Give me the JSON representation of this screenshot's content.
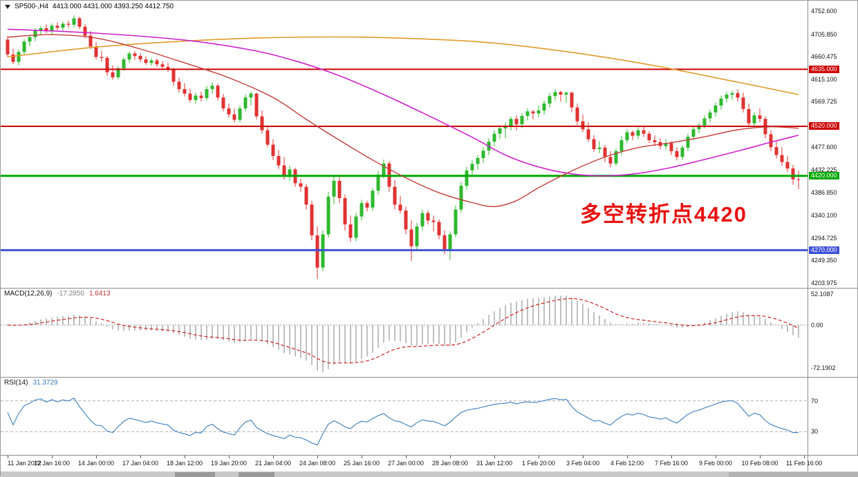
{
  "title": {
    "symbol_period": "SP500-,H4",
    "ohlc": "4413.000 4431.000 4393.250 4412.750"
  },
  "annotation": {
    "text": "多空转折点4420",
    "color": "#e81010"
  },
  "colors": {
    "candle_up": "#2eb82e",
    "candle_down": "#e03232",
    "macd_hist": "#b9b9b9",
    "macd_signal": "#cc2222",
    "rsi_line": "#4a86c0",
    "level_dash": "#b0b0b0",
    "zero_dash": "#999999"
  },
  "price_axis": {
    "ticks": [
      {
        "label": "4752.600",
        "price": 4752.6
      },
      {
        "label": "4705.850",
        "price": 4705.85
      },
      {
        "label": "4660.475",
        "price": 4660.475
      },
      {
        "label": "4615.100",
        "price": 4615.1
      },
      {
        "label": "4569.725",
        "price": 4569.725
      },
      {
        "label": "4477.600",
        "price": 4477.6
      },
      {
        "label": "4432.225",
        "price": 4432.225
      },
      {
        "label": "4386.850",
        "price": 4386.85
      },
      {
        "label": "4340.100",
        "price": 4340.1
      },
      {
        "label": "4294.725",
        "price": 4294.725
      },
      {
        "label": "4249.350",
        "price": 4249.35
      },
      {
        "label": "4203.975",
        "price": 4203.975
      }
    ],
    "badges": [
      {
        "label": "4635.000",
        "price": 4635,
        "color": "#cc0000"
      },
      {
        "label": "4520.000",
        "price": 4520,
        "color": "#cc0000"
      },
      {
        "label": "4420.000",
        "price": 4420,
        "color": "#00a800"
      },
      {
        "label": "4270.000",
        "price": 4270,
        "color": "#3f51d6"
      }
    ]
  },
  "macd": {
    "label": "MACD(12,26,9)",
    "value_main": "-17.2850",
    "value_signal": "1.6413",
    "axis": {
      "max": 62,
      "min": -88,
      "clamp_max": 54,
      "clamp_min": -80,
      "ticks": [
        {
          "label": "52.1087",
          "value": 52.1087
        },
        {
          "label": "0.00",
          "value": 0
        },
        {
          "label": "-72.1902",
          "value": -72.1902
        }
      ]
    }
  },
  "rsi": {
    "label": "RSI(14)",
    "value": "31.3729",
    "axis": {
      "max": 100,
      "min": 0,
      "ticks": [
        {
          "label": "70",
          "value": 70
        },
        {
          "label": "30",
          "value": 30
        }
      ]
    },
    "levels": [
      70,
      30
    ]
  },
  "time_axis": {
    "labels": [
      {
        "label": "11 Jan 2022",
        "bar": 0
      },
      {
        "label": "12 Jan 16:00",
        "bar": 8
      },
      {
        "label": "14 Jan 00:00",
        "bar": 16
      },
      {
        "label": "17 Jan 04:00",
        "bar": 24
      },
      {
        "label": "18 Jan 12:00",
        "bar": 32
      },
      {
        "label": "19 Jan 20:00",
        "bar": 40
      },
      {
        "label": "21 Jan 04:00",
        "bar": 48
      },
      {
        "label": "24 Jan 08:00",
        "bar": 56
      },
      {
        "label": "25 Jan 16:00",
        "bar": 64
      },
      {
        "label": "27 Jan 00:00",
        "bar": 72
      },
      {
        "label": "28 Jan 08:00",
        "bar": 80
      },
      {
        "label": "31 Jan 12:00",
        "bar": 88
      },
      {
        "label": "1 Feb 20:00",
        "bar": 96
      },
      {
        "label": "3 Feb 04:00",
        "bar": 104
      },
      {
        "label": "4 Feb 12:00",
        "bar": 112
      },
      {
        "label": "7 Feb 16:00",
        "bar": 120
      },
      {
        "label": "9 Feb 00:00",
        "bar": 128
      },
      {
        "label": "10 Feb 08:00",
        "bar": 136
      },
      {
        "label": "11 Feb 16:00",
        "bar": 144
      }
    ]
  },
  "chart_data": {
    "type": "candlestick",
    "symbol": "SP500-",
    "timeframe": "H4",
    "current_bar": {
      "open": 4413.0,
      "high": 4431.0,
      "low": 4393.25,
      "close": 4412.75
    },
    "indicators": [
      {
        "name": "MACD",
        "params": "12,26,9",
        "main": -17.285,
        "signal": 1.6413
      },
      {
        "name": "RSI",
        "params": "14",
        "value": 31.3729
      }
    ],
    "price_scale": {
      "top": 4773.5,
      "bottom": 4194.0
    },
    "hlines": [
      {
        "price": 4635,
        "color": "#cc0000",
        "width": 2,
        "label": "4635.000"
      },
      {
        "price": 4520,
        "color": "#cc0000",
        "width": 2,
        "label": "4520.000"
      },
      {
        "price": 4420,
        "color": "#00a800",
        "width": 3,
        "label": "4420.000"
      },
      {
        "price": 4270,
        "color": "#3f51d6",
        "width": 3,
        "label": "4270.000"
      }
    ],
    "ma_lines": [
      {
        "name": "ma-long-orange",
        "color": "#e09a28",
        "width": 1.6,
        "points": [
          [
            0,
            4660
          ],
          [
            16,
            4680
          ],
          [
            32,
            4692
          ],
          [
            48,
            4699
          ],
          [
            64,
            4700
          ],
          [
            80,
            4694
          ],
          [
            88,
            4688
          ],
          [
            96,
            4678
          ],
          [
            104,
            4666
          ],
          [
            112,
            4652
          ],
          [
            120,
            4636
          ],
          [
            128,
            4618
          ],
          [
            136,
            4600
          ],
          [
            143,
            4584
          ]
        ]
      },
      {
        "name": "ma-slow-magenta",
        "color": "#cc22cc",
        "width": 1.6,
        "points": [
          [
            0,
            4716
          ],
          [
            16,
            4708
          ],
          [
            32,
            4694
          ],
          [
            44,
            4674
          ],
          [
            52,
            4652
          ],
          [
            60,
            4622
          ],
          [
            68,
            4584
          ],
          [
            76,
            4542
          ],
          [
            84,
            4498
          ],
          [
            90,
            4462
          ],
          [
            96,
            4438
          ],
          [
            102,
            4424
          ],
          [
            108,
            4420
          ],
          [
            114,
            4425
          ],
          [
            120,
            4437
          ],
          [
            126,
            4453
          ],
          [
            132,
            4470
          ],
          [
            138,
            4488
          ],
          [
            143,
            4502
          ]
        ]
      },
      {
        "name": "ma-mid-red",
        "color": "#c43c3c",
        "width": 1.4,
        "points": [
          [
            0,
            4700
          ],
          [
            8,
            4705
          ],
          [
            16,
            4698
          ],
          [
            24,
            4676
          ],
          [
            32,
            4648
          ],
          [
            40,
            4618
          ],
          [
            48,
            4578
          ],
          [
            54,
            4534
          ],
          [
            60,
            4492
          ],
          [
            66,
            4452
          ],
          [
            72,
            4416
          ],
          [
            78,
            4386
          ],
          [
            84,
            4366
          ],
          [
            88,
            4358
          ],
          [
            92,
            4370
          ],
          [
            96,
            4396
          ],
          [
            102,
            4430
          ],
          [
            108,
            4458
          ],
          [
            114,
            4477
          ],
          [
            120,
            4487
          ],
          [
            126,
            4499
          ],
          [
            132,
            4513
          ],
          [
            138,
            4519
          ],
          [
            143,
            4516
          ]
        ]
      }
    ],
    "candles": [
      [
        4695,
        4702,
        4660,
        4665
      ],
      [
        4665,
        4677,
        4645,
        4650
      ],
      [
        4650,
        4675,
        4643,
        4670
      ],
      [
        4670,
        4696,
        4665,
        4691
      ],
      [
        4691,
        4705,
        4682,
        4700
      ],
      [
        4700,
        4718,
        4692,
        4713
      ],
      [
        4713,
        4722,
        4704,
        4718
      ],
      [
        4718,
        4726,
        4708,
        4712
      ],
      [
        4712,
        4728,
        4706,
        4723
      ],
      [
        4723,
        4730,
        4714,
        4719
      ],
      [
        4719,
        4731,
        4712,
        4727
      ],
      [
        4727,
        4733,
        4719,
        4725
      ],
      [
        4725,
        4744,
        4720,
        4738
      ],
      [
        4738,
        4741,
        4716,
        4721
      ],
      [
        4721,
        4726,
        4698,
        4703
      ],
      [
        4703,
        4712,
        4676,
        4681
      ],
      [
        4681,
        4690,
        4655,
        4660
      ],
      [
        4660,
        4672,
        4650,
        4658
      ],
      [
        4658,
        4662,
        4622,
        4629
      ],
      [
        4629,
        4643,
        4614,
        4619
      ],
      [
        4619,
        4641,
        4615,
        4637
      ],
      [
        4637,
        4660,
        4632,
        4655
      ],
      [
        4655,
        4671,
        4648,
        4667
      ],
      [
        4667,
        4672,
        4654,
        4662
      ],
      [
        4662,
        4668,
        4650,
        4655
      ],
      [
        4655,
        4661,
        4644,
        4648
      ],
      [
        4648,
        4658,
        4642,
        4653
      ],
      [
        4653,
        4657,
        4640,
        4645
      ],
      [
        4645,
        4652,
        4634,
        4640
      ],
      [
        4640,
        4648,
        4630,
        4636
      ],
      [
        4636,
        4638,
        4602,
        4610
      ],
      [
        4610,
        4618,
        4588,
        4595
      ],
      [
        4595,
        4607,
        4580,
        4586
      ],
      [
        4586,
        4596,
        4568,
        4573
      ],
      [
        4573,
        4588,
        4566,
        4582
      ],
      [
        4582,
        4590,
        4570,
        4577
      ],
      [
        4577,
        4601,
        4572,
        4595
      ],
      [
        4595,
        4609,
        4586,
        4602
      ],
      [
        4602,
        4606,
        4572,
        4578
      ],
      [
        4578,
        4585,
        4550,
        4556
      ],
      [
        4556,
        4566,
        4538,
        4544
      ],
      [
        4544,
        4556,
        4528,
        4533
      ],
      [
        4533,
        4562,
        4528,
        4556
      ],
      [
        4556,
        4584,
        4550,
        4578
      ],
      [
        4578,
        4590,
        4562,
        4586
      ],
      [
        4586,
        4588,
        4534,
        4540
      ],
      [
        4540,
        4552,
        4505,
        4512
      ],
      [
        4512,
        4520,
        4478,
        4483
      ],
      [
        4483,
        4494,
        4452,
        4460
      ],
      [
        4460,
        4472,
        4434,
        4441
      ],
      [
        4441,
        4458,
        4412,
        4418
      ],
      [
        4418,
        4440,
        4410,
        4433
      ],
      [
        4433,
        4436,
        4398,
        4405
      ],
      [
        4405,
        4414,
        4388,
        4398
      ],
      [
        4398,
        4404,
        4352,
        4362
      ],
      [
        4362,
        4370,
        4290,
        4300
      ],
      [
        4300,
        4318,
        4212,
        4235
      ],
      [
        4235,
        4310,
        4228,
        4302
      ],
      [
        4302,
        4388,
        4295,
        4378
      ],
      [
        4378,
        4420,
        4362,
        4410
      ],
      [
        4410,
        4417,
        4365,
        4375
      ],
      [
        4375,
        4382,
        4310,
        4322
      ],
      [
        4322,
        4340,
        4287,
        4295
      ],
      [
        4295,
        4345,
        4288,
        4338
      ],
      [
        4338,
        4372,
        4330,
        4365
      ],
      [
        4365,
        4370,
        4348,
        4356
      ],
      [
        4356,
        4395,
        4350,
        4390
      ],
      [
        4390,
        4430,
        4382,
        4422
      ],
      [
        4422,
        4453,
        4415,
        4445
      ],
      [
        4445,
        4450,
        4388,
        4398
      ],
      [
        4398,
        4412,
        4352,
        4362
      ],
      [
        4362,
        4380,
        4344,
        4350
      ],
      [
        4350,
        4358,
        4302,
        4312
      ],
      [
        4312,
        4330,
        4248,
        4278
      ],
      [
        4278,
        4325,
        4270,
        4318
      ],
      [
        4318,
        4352,
        4310,
        4345
      ],
      [
        4345,
        4350,
        4322,
        4330
      ],
      [
        4330,
        4340,
        4308,
        4327
      ],
      [
        4327,
        4332,
        4292,
        4300
      ],
      [
        4300,
        4310,
        4262,
        4272
      ],
      [
        4272,
        4308,
        4250,
        4302
      ],
      [
        4302,
        4360,
        4296,
        4352
      ],
      [
        4352,
        4408,
        4346,
        4400
      ],
      [
        4400,
        4438,
        4392,
        4431
      ],
      [
        4431,
        4452,
        4420,
        4444
      ],
      [
        4444,
        4462,
        4432,
        4456
      ],
      [
        4456,
        4478,
        4446,
        4471
      ],
      [
        4471,
        4496,
        4462,
        4489
      ],
      [
        4489,
        4512,
        4480,
        4505
      ],
      [
        4505,
        4522,
        4494,
        4516
      ],
      [
        4516,
        4528,
        4496,
        4521
      ],
      [
        4521,
        4540,
        4512,
        4535
      ],
      [
        4535,
        4542,
        4512,
        4524
      ],
      [
        4524,
        4546,
        4516,
        4541
      ],
      [
        4541,
        4556,
        4532,
        4550
      ],
      [
        4550,
        4553,
        4534,
        4546
      ],
      [
        4546,
        4562,
        4538,
        4552
      ],
      [
        4552,
        4572,
        4544,
        4566
      ],
      [
        4566,
        4588,
        4558,
        4581
      ],
      [
        4581,
        4595,
        4572,
        4589
      ],
      [
        4589,
        4592,
        4570,
        4584
      ],
      [
        4584,
        4590,
        4568,
        4588
      ],
      [
        4588,
        4590,
        4548,
        4558
      ],
      [
        4558,
        4566,
        4522,
        4530
      ],
      [
        4530,
        4544,
        4508,
        4514
      ],
      [
        4514,
        4528,
        4488,
        4494
      ],
      [
        4494,
        4502,
        4468,
        4474
      ],
      [
        4474,
        4490,
        4466,
        4477
      ],
      [
        4477,
        4482,
        4448,
        4458
      ],
      [
        4458,
        4470,
        4437,
        4445
      ],
      [
        4445,
        4475,
        4440,
        4470
      ],
      [
        4470,
        4500,
        4462,
        4492
      ],
      [
        4492,
        4514,
        4486,
        4508
      ],
      [
        4508,
        4512,
        4492,
        4501
      ],
      [
        4501,
        4518,
        4494,
        4512
      ],
      [
        4512,
        4520,
        4498,
        4505
      ],
      [
        4505,
        4510,
        4486,
        4492
      ],
      [
        4492,
        4502,
        4480,
        4488
      ],
      [
        4488,
        4496,
        4474,
        4480
      ],
      [
        4480,
        4494,
        4472,
        4486
      ],
      [
        4486,
        4490,
        4462,
        4470
      ],
      [
        4470,
        4478,
        4451,
        4458
      ],
      [
        4458,
        4482,
        4452,
        4477
      ],
      [
        4477,
        4505,
        4470,
        4499
      ],
      [
        4499,
        4520,
        4492,
        4514
      ],
      [
        4514,
        4528,
        4506,
        4522
      ],
      [
        4522,
        4542,
        4516,
        4536
      ],
      [
        4536,
        4554,
        4528,
        4548
      ],
      [
        4548,
        4568,
        4540,
        4562
      ],
      [
        4562,
        4582,
        4554,
        4576
      ],
      [
        4576,
        4590,
        4568,
        4584
      ],
      [
        4584,
        4592,
        4574,
        4587
      ],
      [
        4587,
        4595,
        4570,
        4578
      ],
      [
        4578,
        4588,
        4548,
        4555
      ],
      [
        4555,
        4566,
        4518,
        4526
      ],
      [
        4526,
        4548,
        4520,
        4542
      ],
      [
        4542,
        4556,
        4528,
        4535
      ],
      [
        4535,
        4540,
        4496,
        4504
      ],
      [
        4504,
        4512,
        4470,
        4478
      ],
      [
        4478,
        4490,
        4455,
        4462
      ],
      [
        4462,
        4478,
        4440,
        4448
      ],
      [
        4448,
        4460,
        4428,
        4435
      ],
      [
        4435,
        4442,
        4402,
        4413
      ],
      [
        4413,
        4431,
        4393.25,
        4412.75
      ]
    ]
  }
}
